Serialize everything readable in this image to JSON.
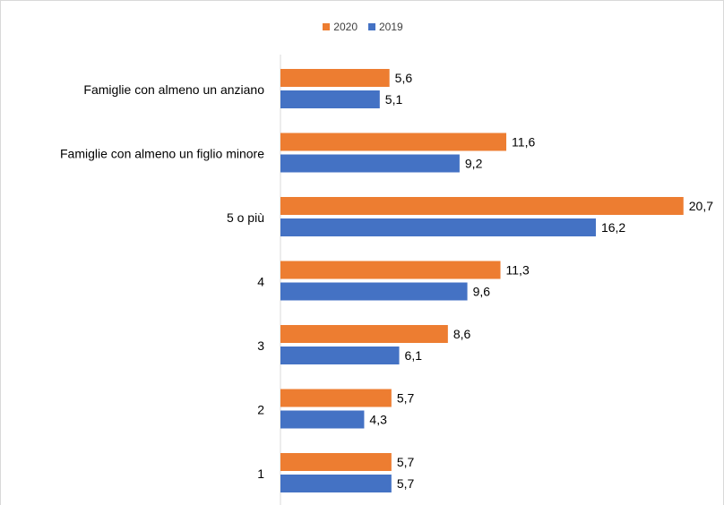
{
  "chart_data": {
    "type": "bar",
    "orientation": "horizontal",
    "categories": [
      "Famiglie con almeno un anziano",
      "Famiglie con almeno un figlio minore",
      "5 o più",
      "4",
      "3",
      "2",
      "1"
    ],
    "series": [
      {
        "name": "2020",
        "color": "#ED7D31",
        "values": [
          5.6,
          11.6,
          20.7,
          11.3,
          8.6,
          5.7,
          5.7
        ],
        "labels": [
          "5,6",
          "11,6",
          "20,7",
          "11,3",
          "8,6",
          "5,7",
          "5,7"
        ]
      },
      {
        "name": "2019",
        "color": "#4472C4",
        "values": [
          5.1,
          9.2,
          16.2,
          9.6,
          6.1,
          4.3,
          5.7
        ],
        "labels": [
          "5,1",
          "9,2",
          "16,2",
          "9,6",
          "6,1",
          "4,3",
          "5,7"
        ]
      }
    ],
    "xlim": [
      0,
      22
    ],
    "grid": false,
    "legend_position": "top-center",
    "title": "",
    "xlabel": "",
    "ylabel": ""
  }
}
